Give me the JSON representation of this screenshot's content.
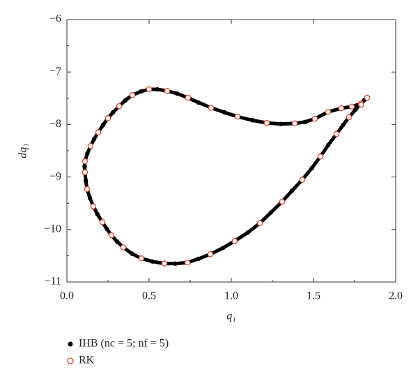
{
  "chart_data": {
    "type": "scatter",
    "xlabel": "q₁",
    "ylabel": "dq₁",
    "xlim": [
      0,
      2
    ],
    "ylim": [
      -11,
      -6
    ],
    "xticks": [
      {
        "value": 0,
        "label": "0.0"
      },
      0.5,
      {
        "value": 1,
        "label": "1.0"
      },
      1.5,
      {
        "value": 2,
        "label": "2.0"
      }
    ],
    "yticks": [
      {
        "value": -11,
        "label": "−11"
      },
      {
        "value": -10,
        "label": "−10"
      },
      {
        "value": -9,
        "label": "−9"
      },
      {
        "value": -8,
        "label": "−8"
      },
      {
        "value": -7,
        "label": "−7"
      },
      {
        "value": -6,
        "label": "−6"
      }
    ],
    "legend": "bottom-left",
    "series": [
      {
        "name": "IHB (nc = 5; nf = 5)",
        "color": "#000000",
        "marker": "filled",
        "x": [
          0.11,
          0.108,
          0.11,
          0.115,
          0.123,
          0.14,
          0.161,
          0.186,
          0.216,
          0.243,
          0.271,
          0.305,
          0.343,
          0.395,
          0.453,
          0.52,
          0.593,
          0.66,
          0.733,
          0.8,
          0.873,
          0.95,
          1.021,
          1.1,
          1.174,
          1.24,
          1.309,
          1.37,
          1.432,
          1.49,
          1.542,
          1.59,
          1.64,
          1.68,
          1.716,
          1.755,
          1.788,
          1.81,
          1.826,
          1.79,
          1.733,
          1.669,
          1.589,
          1.508,
          1.45,
          1.386,
          1.3,
          1.216,
          1.13,
          1.038,
          0.96,
          0.877,
          0.8,
          0.737,
          0.67,
          0.61,
          0.55,
          0.5,
          0.45,
          0.398,
          0.355,
          0.318,
          0.28,
          0.25,
          0.22,
          0.191,
          0.165,
          0.144,
          0.125,
          0.11
        ],
        "y": [
          -8.7,
          -8.8,
          -8.91,
          -9.07,
          -9.23,
          -9.4,
          -9.56,
          -9.71,
          -9.86,
          -9.99,
          -10.11,
          -10.23,
          -10.34,
          -10.46,
          -10.55,
          -10.61,
          -10.65,
          -10.65,
          -10.63,
          -10.56,
          -10.47,
          -10.35,
          -10.22,
          -10.06,
          -9.88,
          -9.68,
          -9.47,
          -9.26,
          -9.05,
          -8.83,
          -8.61,
          -8.39,
          -8.18,
          -8.01,
          -7.86,
          -7.72,
          -7.6,
          -7.53,
          -7.49,
          -7.6,
          -7.66,
          -7.69,
          -7.76,
          -7.89,
          -7.95,
          -7.98,
          -7.99,
          -7.97,
          -7.92,
          -7.85,
          -7.77,
          -7.68,
          -7.58,
          -7.49,
          -7.41,
          -7.36,
          -7.33,
          -7.33,
          -7.37,
          -7.44,
          -7.54,
          -7.65,
          -7.77,
          -7.88,
          -8.01,
          -8.15,
          -8.28,
          -8.41,
          -8.55,
          -8.7
        ]
      },
      {
        "name": "RK",
        "color": "#e8442c",
        "marker": "open",
        "x": [
          0.11,
          0.11,
          0.123,
          0.161,
          0.216,
          0.271,
          0.343,
          0.453,
          0.593,
          0.733,
          0.873,
          1.021,
          1.174,
          1.309,
          1.432,
          1.542,
          1.64,
          1.716,
          1.788,
          1.826,
          1.79,
          1.733,
          1.669,
          1.589,
          1.508,
          1.386,
          1.216,
          1.038,
          0.877,
          0.737,
          0.61,
          0.5,
          0.398,
          0.318,
          0.25,
          0.191,
          0.144
        ],
        "y": [
          -8.7,
          -8.91,
          -9.23,
          -9.56,
          -9.86,
          -10.11,
          -10.34,
          -10.55,
          -10.65,
          -10.63,
          -10.47,
          -10.22,
          -9.88,
          -9.47,
          -9.05,
          -8.61,
          -8.18,
          -7.86,
          -7.6,
          -7.49,
          -7.62,
          -7.66,
          -7.69,
          -7.76,
          -7.89,
          -7.98,
          -7.97,
          -7.85,
          -7.68,
          -7.49,
          -7.36,
          -7.33,
          -7.44,
          -7.65,
          -7.88,
          -8.15,
          -8.41
        ]
      }
    ]
  }
}
